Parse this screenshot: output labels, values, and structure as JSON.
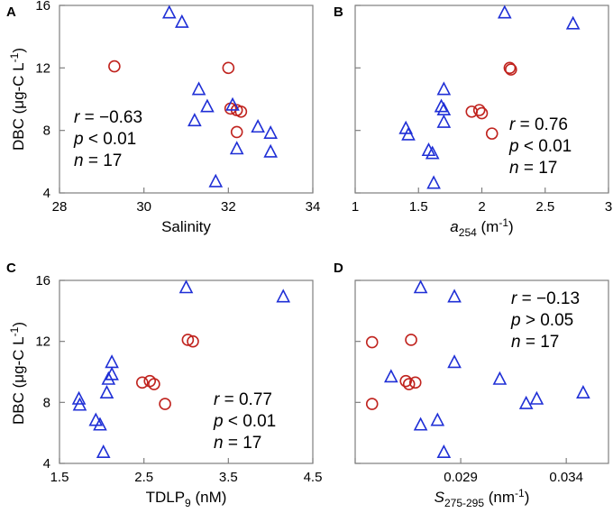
{
  "chart_data": [
    {
      "id": "A",
      "type": "scatter",
      "panel_letter": "A",
      "xlabel": "Salinity",
      "ylabel": "DBC (μg-C L-1)",
      "xlim": [
        28,
        34
      ],
      "ylim": [
        4,
        16
      ],
      "xticks": [
        "28",
        "30",
        "32",
        "34"
      ],
      "yticks": [
        "4",
        "8",
        "12",
        "16"
      ],
      "stats": {
        "r_label": "r",
        "r_value": " = −0.63",
        "p_label": "p",
        "p_value": " < 0.01",
        "n_label": "n",
        "n_value": " = 17"
      },
      "stats_position": "bottom-left",
      "series": [
        {
          "name": "circles",
          "marker": "circle",
          "color": "#c0231e",
          "points": [
            [
              29.3,
              12.1
            ],
            [
              32.0,
              12.0
            ],
            [
              32.05,
              9.4
            ],
            [
              32.2,
              9.3
            ],
            [
              32.3,
              9.2
            ],
            [
              32.2,
              7.9
            ]
          ]
        },
        {
          "name": "triangles",
          "marker": "triangle",
          "color": "#1f2fd6",
          "points": [
            [
              30.6,
              15.5
            ],
            [
              30.9,
              14.9
            ],
            [
              31.3,
              10.6
            ],
            [
              31.2,
              8.6
            ],
            [
              31.5,
              9.5
            ],
            [
              32.1,
              9.6
            ],
            [
              32.2,
              6.8
            ],
            [
              32.7,
              8.2
            ],
            [
              33.0,
              7.8
            ],
            [
              33.0,
              6.6
            ],
            [
              31.7,
              4.7
            ]
          ]
        }
      ]
    },
    {
      "id": "B",
      "type": "scatter",
      "panel_letter": "B",
      "xlabel_italic": "a",
      "xlabel_sub": "254",
      "xlabel_unit": " (m",
      "xlabel_sup": "-1",
      "xlabel_end": ")",
      "xlim": [
        1,
        3
      ],
      "ylim": [
        4,
        16
      ],
      "xticks": [
        "1",
        "1.5",
        "2",
        "2.5",
        "3"
      ],
      "stats": {
        "r_label": "r",
        "r_value": " = 0.76",
        "p_label": "p",
        "p_value": " < 0.01",
        "n_label": "n",
        "n_value": " = 17"
      },
      "stats_position": "bottom-right",
      "series": [
        {
          "name": "circles",
          "marker": "circle",
          "color": "#c0231e",
          "points": [
            [
              2.22,
              12.0
            ],
            [
              2.23,
              11.9
            ],
            [
              1.92,
              9.2
            ],
            [
              1.98,
              9.3
            ],
            [
              2.0,
              9.1
            ],
            [
              2.08,
              7.8
            ]
          ]
        },
        {
          "name": "triangles",
          "marker": "triangle",
          "color": "#1f2fd6",
          "points": [
            [
              2.18,
              15.5
            ],
            [
              2.72,
              14.8
            ],
            [
              1.7,
              10.6
            ],
            [
              1.68,
              9.5
            ],
            [
              1.7,
              9.3
            ],
            [
              1.7,
              8.5
            ],
            [
              1.4,
              8.1
            ],
            [
              1.42,
              7.7
            ],
            [
              1.58,
              6.7
            ],
            [
              1.61,
              6.5
            ],
            [
              1.62,
              4.6
            ]
          ]
        }
      ]
    },
    {
      "id": "C",
      "type": "scatter",
      "panel_letter": "C",
      "xlabel": "TDLP",
      "xlabel_sub": "9",
      "xlabel_unit": " (nM)",
      "ylabel": "DBC (μg-C L-1)",
      "xlim": [
        1.5,
        4.5
      ],
      "ylim": [
        4,
        16
      ],
      "xticks": [
        "1.5",
        "2.5",
        "3.5",
        "4.5"
      ],
      "yticks": [
        "4",
        "8",
        "12",
        "16"
      ],
      "stats": {
        "r_label": "r",
        "r_value": " = 0.77",
        "p_label": "p",
        "p_value": " < 0.01",
        "n_label": "n",
        "n_value": " = 17"
      },
      "stats_position": "bottom-right",
      "series": [
        {
          "name": "circles",
          "marker": "circle",
          "color": "#c0231e",
          "points": [
            [
              3.02,
              12.1
            ],
            [
              3.08,
              12.0
            ],
            [
              2.48,
              9.3
            ],
            [
              2.57,
              9.4
            ],
            [
              2.62,
              9.2
            ],
            [
              2.75,
              7.9
            ]
          ]
        },
        {
          "name": "triangles",
          "marker": "triangle",
          "color": "#1f2fd6",
          "points": [
            [
              3.0,
              15.5
            ],
            [
              4.15,
              14.9
            ],
            [
              2.12,
              10.6
            ],
            [
              2.12,
              9.8
            ],
            [
              2.08,
              9.5
            ],
            [
              2.06,
              8.6
            ],
            [
              1.73,
              8.2
            ],
            [
              1.74,
              7.8
            ],
            [
              1.93,
              6.8
            ],
            [
              1.98,
              6.5
            ],
            [
              2.02,
              4.7
            ]
          ]
        }
      ]
    },
    {
      "id": "D",
      "type": "scatter",
      "panel_letter": "D",
      "xlabel_italic": "S",
      "xlabel_sub": "275-295",
      "xlabel_unit": " (nm",
      "xlabel_sup": "-1",
      "xlabel_end": ")",
      "xlim": [
        0.024,
        0.036
      ],
      "ylim": [
        4,
        16
      ],
      "xticks": [
        "",
        "0.029",
        "0.034"
      ],
      "xtick_values": [
        0.024,
        0.029,
        0.034
      ],
      "stats": {
        "r_label": "r",
        "r_value": " = −0.13",
        "p_label": "p",
        "p_value": " > 0.05",
        "n_label": "n",
        "n_value": " = 17"
      },
      "stats_position": "top-right",
      "series": [
        {
          "name": "circles",
          "marker": "circle",
          "color": "#c0231e",
          "points": [
            [
              0.0248,
              11.95
            ],
            [
              0.02665,
              12.1
            ],
            [
              0.0264,
              9.4
            ],
            [
              0.02655,
              9.2
            ],
            [
              0.02685,
              9.3
            ],
            [
              0.0248,
              7.9
            ]
          ]
        },
        {
          "name": "triangles",
          "marker": "triangle",
          "color": "#1f2fd6",
          "points": [
            [
              0.0271,
              15.5
            ],
            [
              0.0287,
              14.9
            ],
            [
              0.0287,
              10.6
            ],
            [
              0.0257,
              9.65
            ],
            [
              0.03085,
              9.5
            ],
            [
              0.0321,
              7.9
            ],
            [
              0.0326,
              8.2
            ],
            [
              0.0348,
              8.6
            ],
            [
              0.0279,
              6.8
            ],
            [
              0.0271,
              6.5
            ],
            [
              0.0282,
              4.7
            ]
          ]
        }
      ]
    }
  ]
}
